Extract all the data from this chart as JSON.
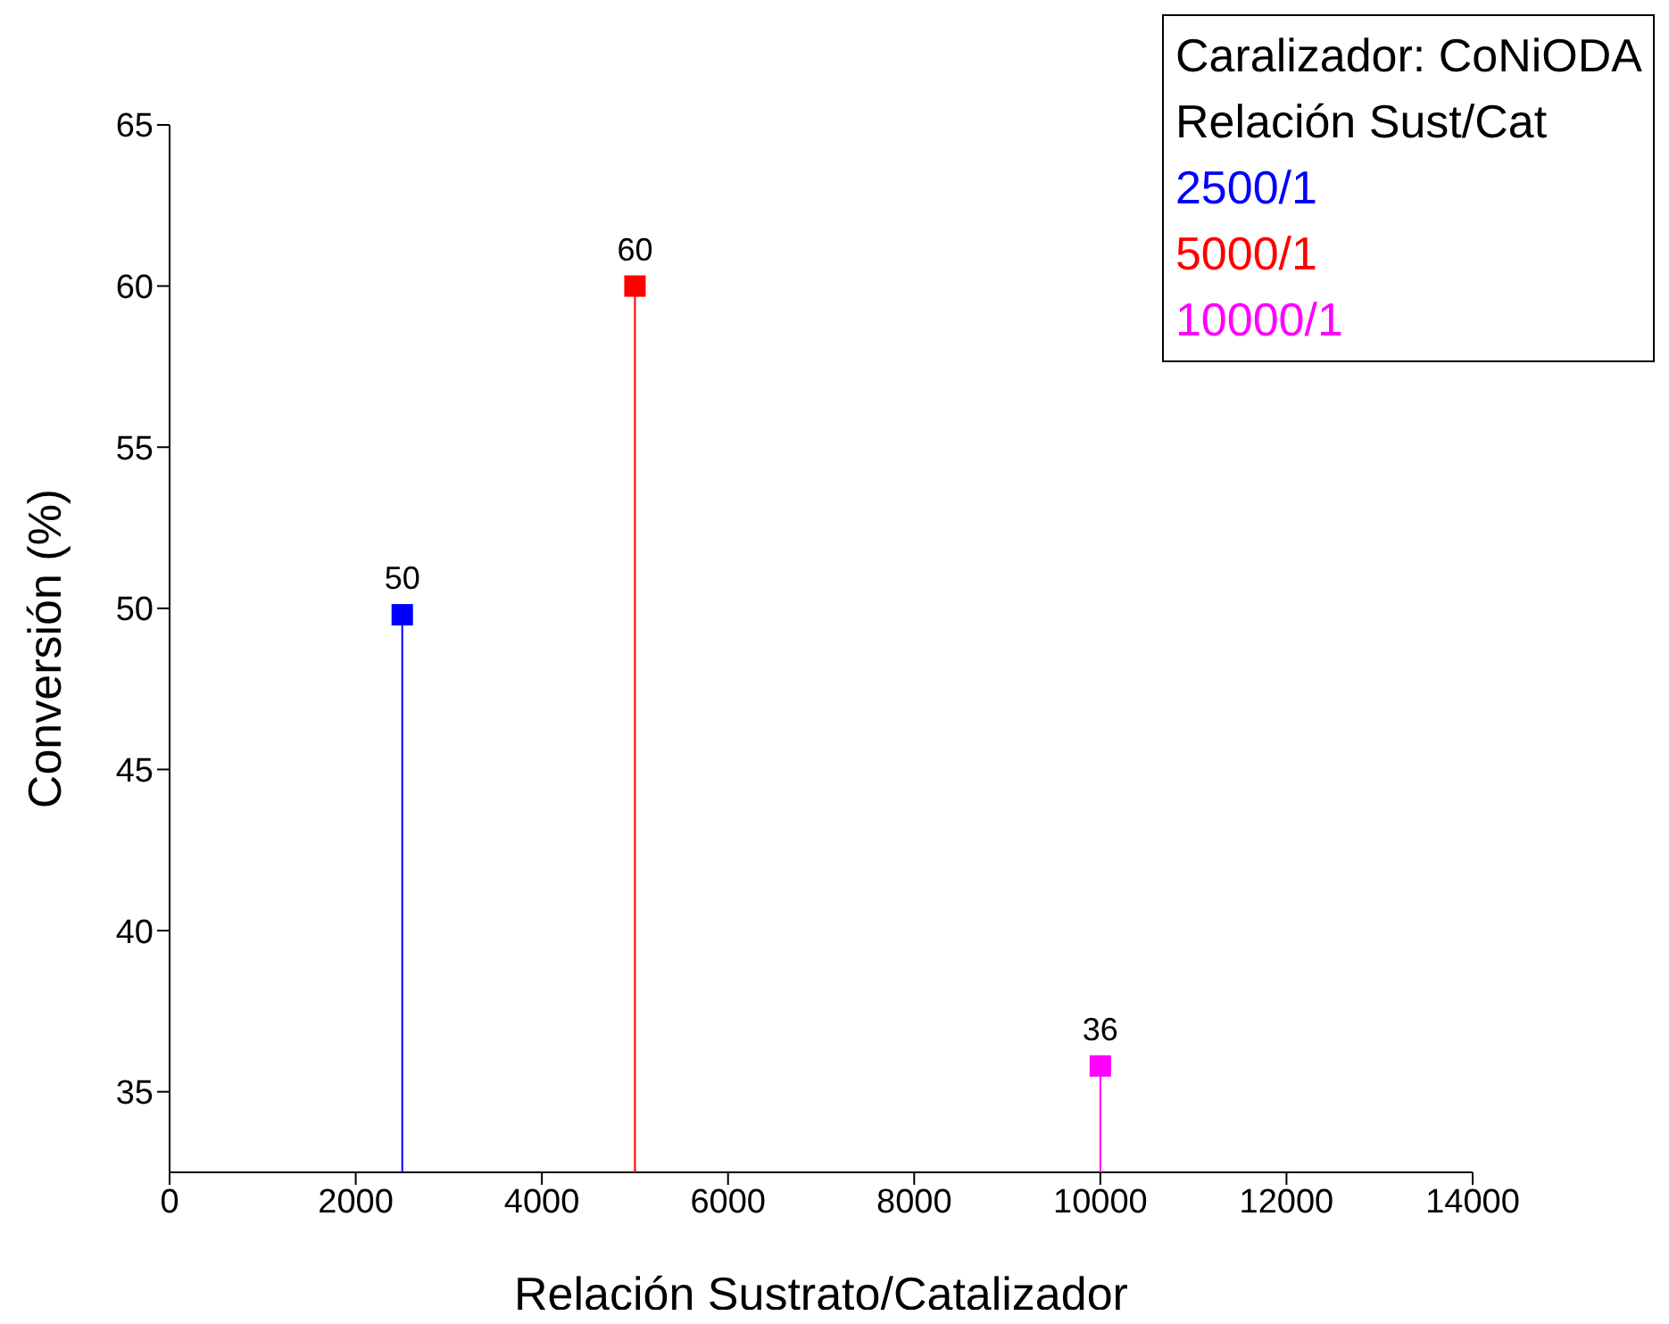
{
  "chart_data": {
    "type": "lollipop",
    "xlabel": "Relación Sustrato/Catalizador",
    "ylabel": "Conversión (%)",
    "legend_title": "Caralizador: CoNiODA\nRelación Sust/Cat",
    "series": [
      {
        "name": "2500/1",
        "color": "#0000ff",
        "x": [
          2500
        ],
        "values": [
          49.8
        ],
        "value_labels": [
          "50"
        ]
      },
      {
        "name": "5000/1",
        "color": "#ff0000",
        "x": [
          5000
        ],
        "values": [
          60
        ],
        "value_labels": [
          "60"
        ]
      },
      {
        "name": "10000/1",
        "color": "#ff00ff",
        "x": [
          10000
        ],
        "values": [
          35.8
        ],
        "value_labels": [
          "36"
        ]
      }
    ],
    "xlim": [
      0,
      14000
    ],
    "xticks": [
      0,
      2000,
      4000,
      6000,
      8000,
      10000,
      12000,
      14000
    ],
    "ylim": [
      32.5,
      65
    ],
    "yticks": [
      35,
      40,
      45,
      50,
      55,
      60,
      65
    ],
    "marker": "square",
    "grid": false,
    "legend": "top right"
  }
}
